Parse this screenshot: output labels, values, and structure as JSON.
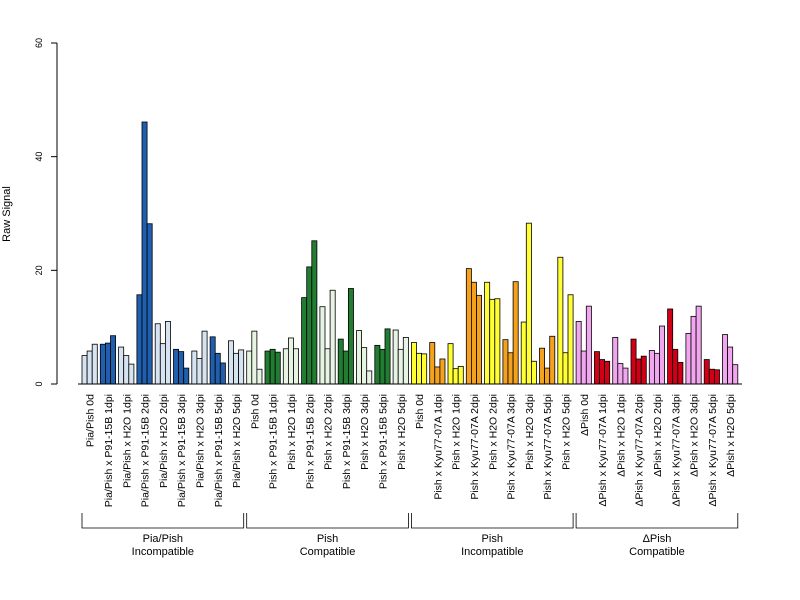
{
  "chart_data": {
    "type": "bar",
    "title": "",
    "xlabel": "",
    "ylabel": "Raw Signal",
    "ylim": [
      0,
      60
    ],
    "yticks": [
      0,
      20,
      40,
      60
    ],
    "categories": [
      "Pia/Pish 0d",
      "Pia/Pish x P91-15B 1dpi",
      "Pia/Pish x H2O 1dpi",
      "Pia/Pish x P91-15B 2dpi",
      "Pia/Pish x H2O 2dpi",
      "Pia/Pish x P91-15B 3dpi",
      "Pia/Pish x H2O 3dpi",
      "Pia/Pish x P91-15B 5dpi",
      "Pia/Pish x H2O 5dpi",
      "Pish 0d",
      "Pish x P91-15B 1dpi",
      "Pish x H2O 1dpi",
      "Pish x P91-15B 2dpi",
      "Pish x H2O 2dpi",
      "Pish x P91-15B 3dpi",
      "Pish x H2O 3dpi",
      "Pish x P91-15B 5dpi",
      "Pish x H2O 5dpi",
      "Pish 0d",
      "Pish x Kyu77-07A 1dpi",
      "Pish x H2O 1dpi",
      "Pish x Kyu77-07A 2dpi",
      "Pish x H2O 2dpi",
      "Pish x Kyu77-07A 3dpi",
      "Pish x H2O 3dpi",
      "Pish x Kyu77-07A 5dpi",
      "Pish x H2O 5dpi",
      "ΔPish 0d",
      "ΔPish x Kyu77-07A 1dpi",
      "ΔPish x H2O 1dpi",
      "ΔPish x Kyu77-07A 2dpi",
      "ΔPish x H2O 2dpi",
      "ΔPish x Kyu77-07A 3dpi",
      "ΔPish x H2O 3dpi",
      "ΔPish x Kyu77-07A 5dpi",
      "ΔPish x H2O 5dpi"
    ],
    "replicates": [
      [
        5.0,
        5.8,
        7.0
      ],
      [
        7.0,
        7.2,
        8.5
      ],
      [
        6.5,
        5.0,
        3.5
      ],
      [
        15.7,
        46.1,
        28.2
      ],
      [
        10.6,
        7.1,
        11.0
      ],
      [
        6.1,
        5.7,
        2.8
      ],
      [
        5.8,
        4.5,
        9.3
      ],
      [
        8.3,
        5.4,
        3.7
      ],
      [
        7.6,
        5.4,
        6.0
      ],
      [
        5.8,
        9.3,
        2.6
      ],
      [
        5.8,
        6.1,
        5.6
      ],
      [
        6.2,
        8.1,
        6.2
      ],
      [
        15.2,
        20.6,
        25.2
      ],
      [
        13.6,
        6.2,
        16.5
      ],
      [
        7.9,
        5.8,
        16.8
      ],
      [
        9.4,
        6.4,
        2.3
      ],
      [
        6.8,
        6.1,
        9.7
      ],
      [
        9.5,
        6.1,
        8.2
      ],
      [
        7.3,
        5.4,
        5.3
      ],
      [
        7.3,
        3.0,
        4.4
      ],
      [
        7.1,
        2.7,
        3.1
      ],
      [
        20.3,
        17.9,
        15.6
      ],
      [
        17.9,
        14.9,
        15.0
      ],
      [
        7.8,
        5.5,
        18.0
      ],
      [
        10.9,
        28.3,
        4.0
      ],
      [
        6.3,
        2.8,
        8.4
      ],
      [
        22.3,
        5.5,
        15.7
      ],
      [
        11.0,
        5.8,
        13.7
      ],
      [
        5.7,
        4.3,
        4.0
      ],
      [
        8.2,
        3.6,
        2.8
      ],
      [
        7.9,
        4.4,
        4.9
      ],
      [
        5.9,
        5.4,
        10.2
      ],
      [
        13.2,
        6.1,
        3.8
      ],
      [
        8.9,
        11.9,
        13.7
      ],
      [
        4.3,
        2.6,
        2.5
      ],
      [
        8.7,
        6.5,
        3.4
      ]
    ],
    "colors": {
      "light_blue": "#d6e4f1",
      "dark_blue": "#1f5fae",
      "light_green": "#e7f4e3",
      "dark_green": "#227d33",
      "yellow": "#ffff33",
      "orange": "#f4a11d",
      "pink": "#f2a6ef",
      "red": "#d20016"
    },
    "bar_color_keys": [
      "light_blue",
      "dark_blue",
      "light_blue",
      "dark_blue",
      "light_blue",
      "dark_blue",
      "light_blue",
      "dark_blue",
      "light_blue",
      "light_green",
      "dark_green",
      "light_green",
      "dark_green",
      "light_green",
      "dark_green",
      "light_green",
      "dark_green",
      "light_green",
      "yellow",
      "orange",
      "yellow",
      "orange",
      "yellow",
      "orange",
      "yellow",
      "orange",
      "yellow",
      "pink",
      "red",
      "pink",
      "red",
      "pink",
      "red",
      "pink",
      "red",
      "pink"
    ],
    "groups": [
      {
        "line1": "Pia/Pish",
        "line2": "Incompatible",
        "start": 0,
        "end": 8
      },
      {
        "line1": "Pish",
        "line2": "Compatible",
        "start": 9,
        "end": 17
      },
      {
        "line1": "Pish",
        "line2": "Incompatible",
        "start": 18,
        "end": 26
      },
      {
        "line1": "ΔPish",
        "line2": "Compatible",
        "start": 27,
        "end": 35
      }
    ],
    "grid": false,
    "legend": "none"
  }
}
